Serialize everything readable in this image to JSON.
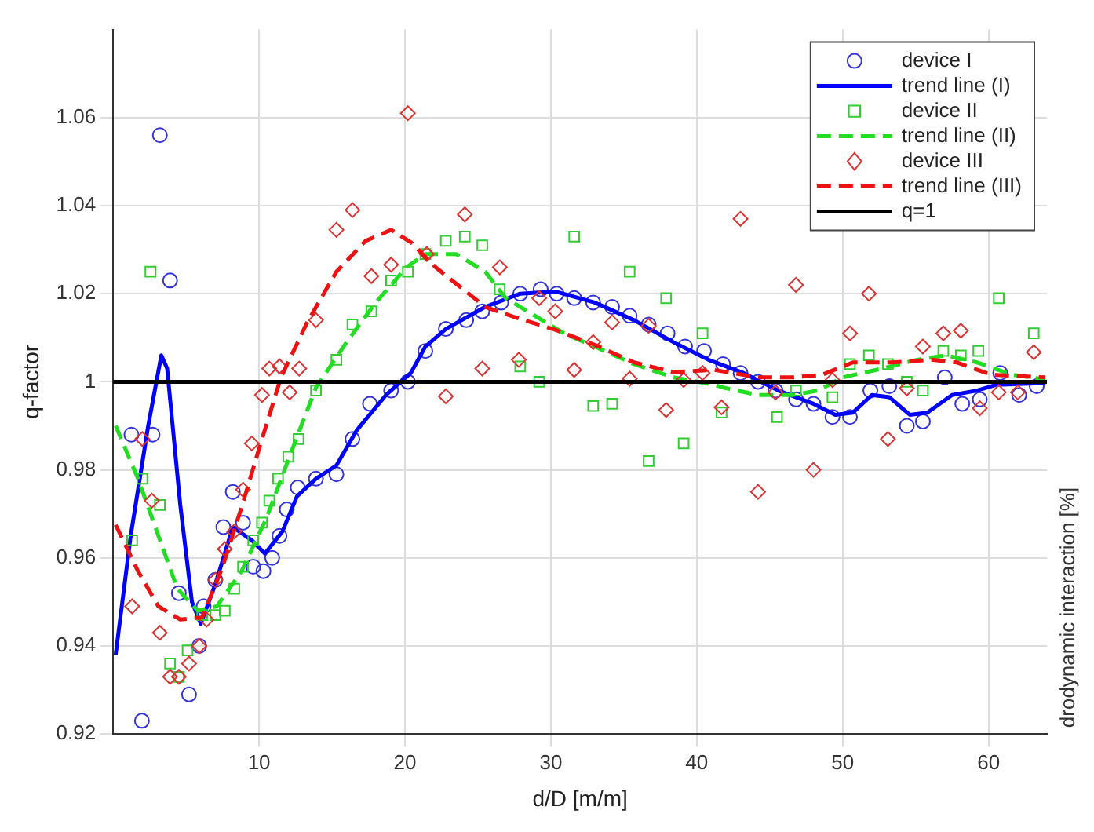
{
  "chart_data": {
    "type": "scatter",
    "xlabel": "d/D [m/m]",
    "ylabel": "q-factor",
    "xlim": [
      0,
      64
    ],
    "ylim": [
      0.92,
      1.08
    ],
    "xticks": [
      10,
      20,
      30,
      40,
      50,
      60
    ],
    "yticks": [
      0.92,
      0.94,
      0.96,
      0.98,
      1,
      1.02,
      1.04,
      1.06
    ],
    "grid": true,
    "legend": "top right",
    "annotations": [
      "drodynamic interaction [%]"
    ],
    "series": [
      {
        "name": "device I",
        "marker": "circle",
        "color": "#3333dd",
        "x": [
          1.25,
          1.97,
          2.7,
          3.2,
          3.9,
          4.5,
          5.2,
          5.9,
          6.2,
          7.0,
          7.55,
          8.2,
          8.9,
          9.6,
          10.3,
          10.9,
          11.4,
          11.9,
          12.65,
          13.9,
          15.3,
          16.4,
          17.6,
          19.05,
          20.2,
          21.4,
          22.8,
          24.2,
          25.3,
          26.6,
          27.9,
          29.3,
          30.4,
          31.6,
          32.9,
          34.2,
          35.4,
          36.7,
          38.0,
          39.2,
          40.5,
          41.8,
          43.0,
          44.2,
          45.4,
          46.8,
          48.0,
          49.3,
          50.5,
          51.9,
          53.2,
          54.4,
          55.5,
          57.0,
          58.2,
          59.4,
          60.8,
          62.1,
          63.3
        ],
        "values": [
          0.988,
          0.923,
          0.988,
          1.056,
          1.023,
          0.952,
          0.929,
          0.94,
          0.949,
          0.955,
          0.967,
          0.975,
          0.968,
          0.958,
          0.957,
          0.96,
          0.965,
          0.971,
          0.976,
          0.978,
          0.979,
          0.987,
          0.995,
          0.998,
          1.0,
          1.007,
          1.012,
          1.014,
          1.016,
          1.018,
          1.02,
          1.021,
          1.02,
          1.019,
          1.018,
          1.017,
          1.015,
          1.013,
          1.011,
          1.008,
          1.007,
          1.004,
          1.002,
          1.0,
          0.998,
          0.996,
          0.995,
          0.992,
          0.992,
          0.998,
          0.999,
          0.99,
          0.991,
          1.001,
          0.995,
          0.996,
          1.002,
          0.997,
          0.999
        ]
      },
      {
        "name": "trend line (I)",
        "type": "line",
        "marker": "none",
        "line_style": "solid",
        "color": "#0000ff",
        "x": [
          0.17,
          1.2,
          2.4,
          3.3,
          3.7,
          4.6,
          5.4,
          6.0,
          7.0,
          8.2,
          9.5,
          10.4,
          11.6,
          12.6,
          13.9,
          15.3,
          16.7,
          18.7,
          20.4,
          21.4,
          22.8,
          25.5,
          27.9,
          30.3,
          33.0,
          35.7,
          38.4,
          40.8,
          43.2,
          45.6,
          48.0,
          49.5,
          50.7,
          52.0,
          53.2,
          54.6,
          55.8,
          57.5,
          59.2,
          60.5,
          63.9
        ],
        "values": [
          0.938,
          0.965,
          0.99,
          1.006,
          1.003,
          0.972,
          0.95,
          0.945,
          0.954,
          0.967,
          0.964,
          0.961,
          0.966,
          0.974,
          0.978,
          0.981,
          0.989,
          0.997,
          1.002,
          1.008,
          1.012,
          1.017,
          1.02,
          1.0205,
          1.018,
          1.014,
          1.009,
          1.005,
          1.002,
          0.998,
          0.995,
          0.9925,
          0.993,
          0.997,
          0.9965,
          0.9925,
          0.993,
          0.997,
          0.998,
          0.9993,
          0.9997
        ]
      },
      {
        "name": "device II",
        "marker": "square",
        "color": "#33cc33",
        "x": [
          1.3,
          2.0,
          2.55,
          3.2,
          3.9,
          4.5,
          5.1,
          6.1,
          7.0,
          7.65,
          8.3,
          8.9,
          9.6,
          10.2,
          10.7,
          11.3,
          12.0,
          12.7,
          13.9,
          15.3,
          16.4,
          17.7,
          19.05,
          20.2,
          21.4,
          22.8,
          24.1,
          25.3,
          26.5,
          27.9,
          29.2,
          31.6,
          32.9,
          34.2,
          35.4,
          36.7,
          37.9,
          39.1,
          40.4,
          41.7,
          45.5,
          46.8,
          49.3,
          50.5,
          51.8,
          53.1,
          54.4,
          55.5,
          56.9,
          58.1,
          59.3,
          60.7,
          63.1
        ],
        "values": [
          0.964,
          0.978,
          1.025,
          0.972,
          0.936,
          0.933,
          0.939,
          0.947,
          0.947,
          0.948,
          0.953,
          0.958,
          0.964,
          0.968,
          0.973,
          0.978,
          0.983,
          0.987,
          0.998,
          1.005,
          1.013,
          1.016,
          1.023,
          1.025,
          1.029,
          1.032,
          1.033,
          1.031,
          1.021,
          1.0035,
          1.0,
          1.033,
          0.9945,
          0.995,
          1.025,
          0.982,
          1.019,
          0.986,
          1.011,
          0.993,
          0.992,
          0.998,
          0.9965,
          1.004,
          1.006,
          1.004,
          1.0,
          0.998,
          1.007,
          1.006,
          1.007,
          1.019,
          1.011
        ]
      },
      {
        "name": "trend line (II)",
        "type": "line",
        "marker": "none",
        "line_style": "dashed",
        "color": "#22dd22",
        "x": [
          0.17,
          1.7,
          3.1,
          4.4,
          5.8,
          7.1,
          8.8,
          10.5,
          12.2,
          13.9,
          16.0,
          18.0,
          20.1,
          21.4,
          23.5,
          25.5,
          26.9,
          28.9,
          30.9,
          33.0,
          35.7,
          38.4,
          41.2,
          41.8,
          44.2,
          46.6,
          48.3,
          50.0,
          52.7,
          55.1,
          57.1,
          59.2,
          61.6,
          63.9
        ],
        "values": [
          0.99,
          0.978,
          0.965,
          0.953,
          0.948,
          0.949,
          0.957,
          0.969,
          0.984,
          0.9987,
          1.009,
          1.018,
          1.026,
          1.029,
          1.029,
          1.025,
          1.019,
          1.015,
          1.011,
          1.008,
          1.004,
          1.001,
          0.9993,
          0.9987,
          0.997,
          0.997,
          0.998,
          1.001,
          1.003,
          1.005,
          1.006,
          1.0044,
          1.0016,
          1.0005
        ]
      },
      {
        "name": "device III",
        "marker": "diamond",
        "color": "#dd3333",
        "x": [
          1.3,
          2.0,
          2.65,
          3.2,
          3.9,
          4.5,
          5.2,
          5.9,
          6.4,
          7.0,
          7.65,
          8.3,
          8.9,
          9.5,
          10.2,
          10.7,
          11.4,
          12.1,
          12.75,
          13.9,
          15.3,
          16.4,
          17.7,
          19.05,
          20.2,
          21.5,
          22.8,
          24.1,
          25.3,
          26.5,
          27.8,
          29.2,
          30.3,
          31.6,
          32.9,
          34.2,
          35.4,
          36.7,
          37.9,
          39.1,
          40.4,
          41.7,
          43.0,
          44.2,
          45.4,
          46.8,
          48.0,
          49.3,
          50.5,
          51.8,
          53.1,
          54.4,
          55.5,
          56.9,
          58.1,
          59.4,
          60.7,
          62.0,
          63.1
        ],
        "values": [
          0.949,
          0.987,
          0.973,
          0.943,
          0.933,
          0.933,
          0.936,
          0.94,
          0.946,
          0.955,
          0.962,
          0.966,
          0.9755,
          0.986,
          0.997,
          1.003,
          1.0035,
          0.9976,
          1.003,
          1.014,
          1.0345,
          1.039,
          1.024,
          1.0266,
          1.061,
          1.029,
          0.9967,
          1.038,
          1.003,
          1.026,
          1.005,
          1.019,
          1.016,
          1.0027,
          1.009,
          1.0135,
          1.0007,
          1.0127,
          0.9936,
          1.0004,
          1.002,
          0.9942,
          1.037,
          0.975,
          0.9976,
          1.022,
          0.98,
          1.0004,
          1.011,
          1.02,
          0.987,
          0.9985,
          1.008,
          1.011,
          1.0116,
          0.994,
          0.9976,
          0.9976,
          1.0067
        ]
      },
      {
        "name": "trend line (III)",
        "type": "line",
        "marker": "none",
        "line_style": "dashed",
        "color": "#ee1111",
        "x": [
          0.17,
          1.7,
          3.1,
          4.6,
          6.1,
          7.5,
          8.8,
          10.2,
          11.5,
          13.3,
          15.3,
          17.3,
          19.05,
          20.4,
          22.1,
          23.8,
          25.5,
          27.6,
          30.3,
          33.0,
          35.7,
          38.4,
          41.2,
          44.2,
          46.6,
          48.6,
          50.7,
          53.4,
          56.1,
          57.8,
          60.2,
          63.9
        ],
        "values": [
          0.9675,
          0.957,
          0.949,
          0.946,
          0.9465,
          0.958,
          0.9715,
          0.987,
          1.001,
          1.0135,
          1.025,
          1.032,
          1.0345,
          1.0317,
          1.026,
          1.0215,
          1.017,
          1.0146,
          1.0118,
          1.0084,
          1.0044,
          1.0022,
          1.0027,
          1.001,
          1.001,
          1.0016,
          1.0044,
          1.0044,
          1.005,
          1.0044,
          1.0016,
          1.001
        ]
      },
      {
        "name": "q=1",
        "type": "line",
        "marker": "none",
        "line_style": "solid",
        "color": "#000000",
        "x": [
          0,
          64
        ],
        "values": [
          1,
          1
        ]
      }
    ]
  }
}
